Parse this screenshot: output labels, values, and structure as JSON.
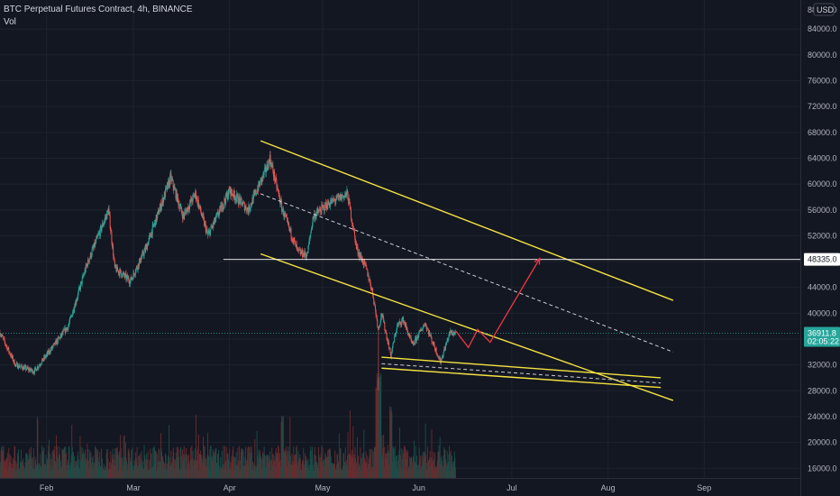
{
  "chart_data": {
    "type": "candlestick",
    "symbol_title": "BTC Perpetual Futures Contract, 4h, BINANCE",
    "volume_label": "Vol",
    "currency": "USD",
    "y_ticks": [
      16000,
      20000,
      24000,
      28000,
      32000,
      36000,
      40000,
      44000,
      48000,
      52000,
      56000,
      60000,
      64000,
      68000,
      72000,
      76000,
      80000,
      84000
    ],
    "y_tick_labels": [
      "16000.0",
      "20000.0",
      "24000.0",
      "28000.0",
      "32000.0",
      "36000.0",
      "40000.0",
      "44000.0",
      "48000.0",
      "52000.0",
      "56000.0",
      "60000.0",
      "64000.0",
      "68000.0",
      "72000.0",
      "76000.0",
      "80000.0",
      "84000.0"
    ],
    "top_tick_label": "88000.0",
    "x_tick_labels": [
      "Feb",
      "Mar",
      "Apr",
      "May",
      "Jun",
      "Jul",
      "Aug",
      "Sep"
    ],
    "x_tick_dates": [
      "2021-02-01",
      "2021-03-01",
      "2021-04-01",
      "2021-05-01",
      "2021-06-01",
      "2021-07-01",
      "2021-08-01",
      "2021-09-01"
    ],
    "x_range": [
      "2021-01-17",
      "2021-10-02"
    ],
    "y_range": [
      14500,
      88500
    ],
    "price_anchors": [
      [
        "2021-01-17",
        37000
      ],
      [
        "2021-01-22",
        32000
      ],
      [
        "2021-01-28",
        31000
      ],
      [
        "2021-02-01",
        33500
      ],
      [
        "2021-02-08",
        38000
      ],
      [
        "2021-02-14",
        47500
      ],
      [
        "2021-02-21",
        56000
      ],
      [
        "2021-02-23",
        47000
      ],
      [
        "2021-02-28",
        45000
      ],
      [
        "2021-03-05",
        50000
      ],
      [
        "2021-03-13",
        61000
      ],
      [
        "2021-03-17",
        55000
      ],
      [
        "2021-03-21",
        58500
      ],
      [
        "2021-03-25",
        52000
      ],
      [
        "2021-04-01",
        59000
      ],
      [
        "2021-04-07",
        56000
      ],
      [
        "2021-04-13",
        62500
      ],
      [
        "2021-04-14",
        64000
      ],
      [
        "2021-04-18",
        56000
      ],
      [
        "2021-04-23",
        49500
      ],
      [
        "2021-04-26",
        49000
      ],
      [
        "2021-04-28",
        55000
      ],
      [
        "2021-05-03",
        57000
      ],
      [
        "2021-05-09",
        58500
      ],
      [
        "2021-05-12",
        50000
      ],
      [
        "2021-05-15",
        47000
      ],
      [
        "2021-05-17",
        43500
      ],
      [
        "2021-05-19",
        37500
      ],
      [
        "2021-05-20",
        40000
      ],
      [
        "2021-05-23",
        33500
      ],
      [
        "2021-05-25",
        38000
      ],
      [
        "2021-05-27",
        39000
      ],
      [
        "2021-05-30",
        35000
      ],
      [
        "2021-06-03",
        38500
      ],
      [
        "2021-06-08",
        32500
      ],
      [
        "2021-06-11",
        37000
      ],
      [
        "2021-06-13",
        36900
      ]
    ],
    "volume_scale_note": "",
    "horizontal_line": {
      "price": 48335,
      "label": "48335.0"
    },
    "last_price": {
      "price": 36911.8,
      "label": "36911.8",
      "countdown": "02:05:22"
    },
    "channel_upper": {
      "from": [
        "2021-04-11",
        66700
      ],
      "to": [
        "2021-08-22",
        42000
      ]
    },
    "channel_lower": {
      "from": [
        "2021-04-11",
        49200
      ],
      "to": [
        "2021-08-22",
        26500
      ]
    },
    "channel_mid": {
      "from": [
        "2021-04-11",
        58500
      ],
      "to": [
        "2021-08-22",
        34000
      ]
    },
    "wedge_upper": {
      "from": [
        "2021-05-20",
        33200
      ],
      "to": [
        "2021-08-18",
        30000
      ]
    },
    "wedge_lower": {
      "from": [
        "2021-05-20",
        31500
      ],
      "to": [
        "2021-08-18",
        28500
      ]
    },
    "wedge_mid": {
      "from": [
        "2021-05-20",
        32200
      ],
      "to": [
        "2021-08-18",
        29200
      ]
    },
    "projection": [
      [
        "2021-06-13",
        37200
      ],
      [
        "2021-06-17",
        34700
      ],
      [
        "2021-06-20",
        37500
      ],
      [
        "2021-06-24",
        35500
      ],
      [
        "2021-07-10",
        48500
      ]
    ],
    "colors": {
      "background": "#131722",
      "grid": "#1e222d",
      "axis_text": "#b2b5be",
      "up": "#26a69a",
      "down": "#ef5350",
      "vol_up": "#1b4d48",
      "vol_down": "#6b2b2e",
      "trend": "#f5e342",
      "projection": "#f23645",
      "hline": "#ffffff",
      "last_price": "#26a69a"
    }
  }
}
